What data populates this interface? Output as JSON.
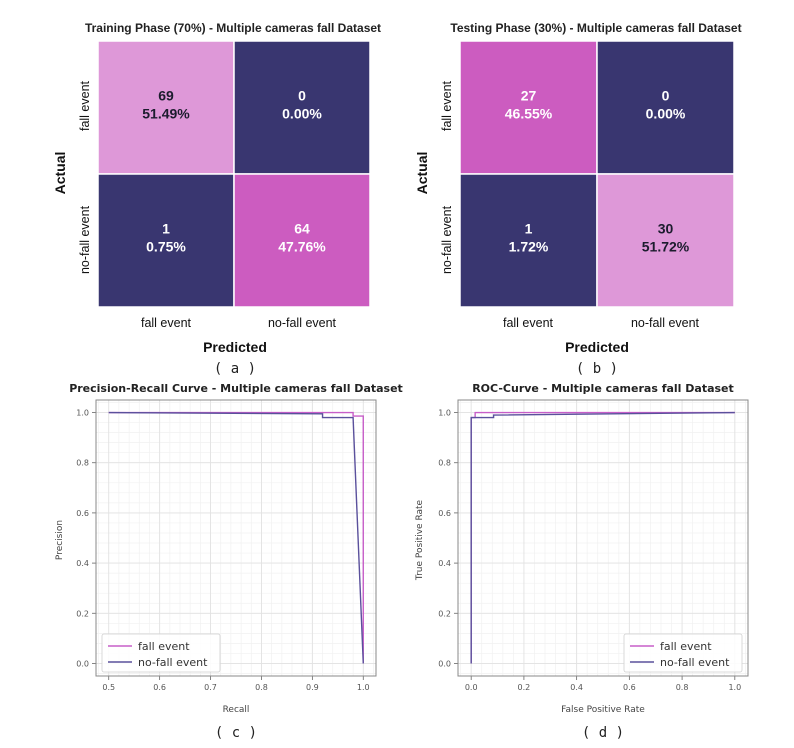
{
  "colors": {
    "dark": "#393670",
    "light": "#de98d8",
    "mid": "#cc5cc0",
    "fall_line": "#c75ec8",
    "nofall_line": "#5a509c",
    "grid_major": "#e2e2e2",
    "grid_minor": "#f1f1f1"
  },
  "chart_data": [
    {
      "type": "heatmap",
      "id": "a",
      "title": "Training Phase (70%) - Multiple cameras fall Dataset",
      "xlabel": "Predicted",
      "ylabel": "Actual",
      "row_labels": [
        "fall event",
        "no-fall event"
      ],
      "col_labels": [
        "fall event",
        "no-fall event"
      ],
      "cells": [
        [
          {
            "count": "69",
            "pct": "51.49%",
            "shade": "light"
          },
          {
            "count": "0",
            "pct": "0.00%",
            "shade": "dark"
          }
        ],
        [
          {
            "count": "1",
            "pct": "0.75%",
            "shade": "dark"
          },
          {
            "count": "64",
            "pct": "47.76%",
            "shade": "mid"
          }
        ]
      ],
      "caption": "( a )"
    },
    {
      "type": "heatmap",
      "id": "b",
      "title": "Testing Phase (30%) - Multiple cameras fall Dataset",
      "xlabel": "Predicted",
      "ylabel": "Actual",
      "row_labels": [
        "fall event",
        "no-fall event"
      ],
      "col_labels": [
        "fall event",
        "no-fall event"
      ],
      "cells": [
        [
          {
            "count": "27",
            "pct": "46.55%",
            "shade": "mid"
          },
          {
            "count": "0",
            "pct": "0.00%",
            "shade": "dark"
          }
        ],
        [
          {
            "count": "1",
            "pct": "1.72%",
            "shade": "dark"
          },
          {
            "count": "30",
            "pct": "51.72%",
            "shade": "light"
          }
        ]
      ],
      "caption": "( b )"
    },
    {
      "type": "line",
      "id": "c",
      "title": "Precision-Recall Curve - Multiple cameras fall Dataset",
      "xlabel": "Recall",
      "ylabel": "Precision",
      "xlim": [
        0.475,
        1.025
      ],
      "ylim": [
        -0.05,
        1.05
      ],
      "xticks": [
        0.5,
        0.6,
        0.7,
        0.8,
        0.9,
        1.0
      ],
      "xtick_labels": [
        "0.5",
        "0.6",
        "0.7",
        "0.8",
        "0.9",
        "1.0"
      ],
      "yticks": [
        0.0,
        0.2,
        0.4,
        0.6,
        0.8,
        1.0
      ],
      "ytick_labels": [
        "0.0",
        "0.2",
        "0.4",
        "0.6",
        "0.8",
        "1.0"
      ],
      "legend_position": "lower-left",
      "series": [
        {
          "name": "fall event",
          "color_key": "fall_line",
          "x": [
            0.5,
            0.98,
            0.98,
            1.0,
            1.0
          ],
          "y": [
            1.0,
            1.0,
            0.986,
            0.986,
            0.0
          ]
        },
        {
          "name": "no-fall event",
          "color_key": "nofall_line",
          "x": [
            0.5,
            0.92,
            0.92,
            0.98,
            1.0
          ],
          "y": [
            1.0,
            0.995,
            0.98,
            0.98,
            0.0
          ]
        }
      ],
      "caption": "( c )"
    },
    {
      "type": "line",
      "id": "d",
      "title": "ROC-Curve - Multiple cameras fall Dataset",
      "xlabel": "False Positive Rate",
      "ylabel": "True Positive Rate",
      "xlim": [
        -0.05,
        1.05
      ],
      "ylim": [
        -0.05,
        1.05
      ],
      "xticks": [
        0.0,
        0.2,
        0.4,
        0.6,
        0.8,
        1.0
      ],
      "xtick_labels": [
        "0.0",
        "0.2",
        "0.4",
        "0.6",
        "0.8",
        "1.0"
      ],
      "yticks": [
        0.0,
        0.2,
        0.4,
        0.6,
        0.8,
        1.0
      ],
      "ytick_labels": [
        "0.0",
        "0.2",
        "0.4",
        "0.6",
        "0.8",
        "1.0"
      ],
      "legend_position": "lower-right",
      "series": [
        {
          "name": "fall event",
          "color_key": "fall_line",
          "x": [
            0.0,
            0.0,
            0.015,
            0.015,
            1.0
          ],
          "y": [
            0.0,
            0.98,
            0.98,
            1.0,
            1.0
          ]
        },
        {
          "name": "no-fall event",
          "color_key": "nofall_line",
          "x": [
            0.0,
            0.0,
            0.085,
            0.085,
            1.0
          ],
          "y": [
            0.0,
            0.98,
            0.98,
            0.99,
            1.0
          ]
        }
      ],
      "caption": "( d )"
    }
  ]
}
